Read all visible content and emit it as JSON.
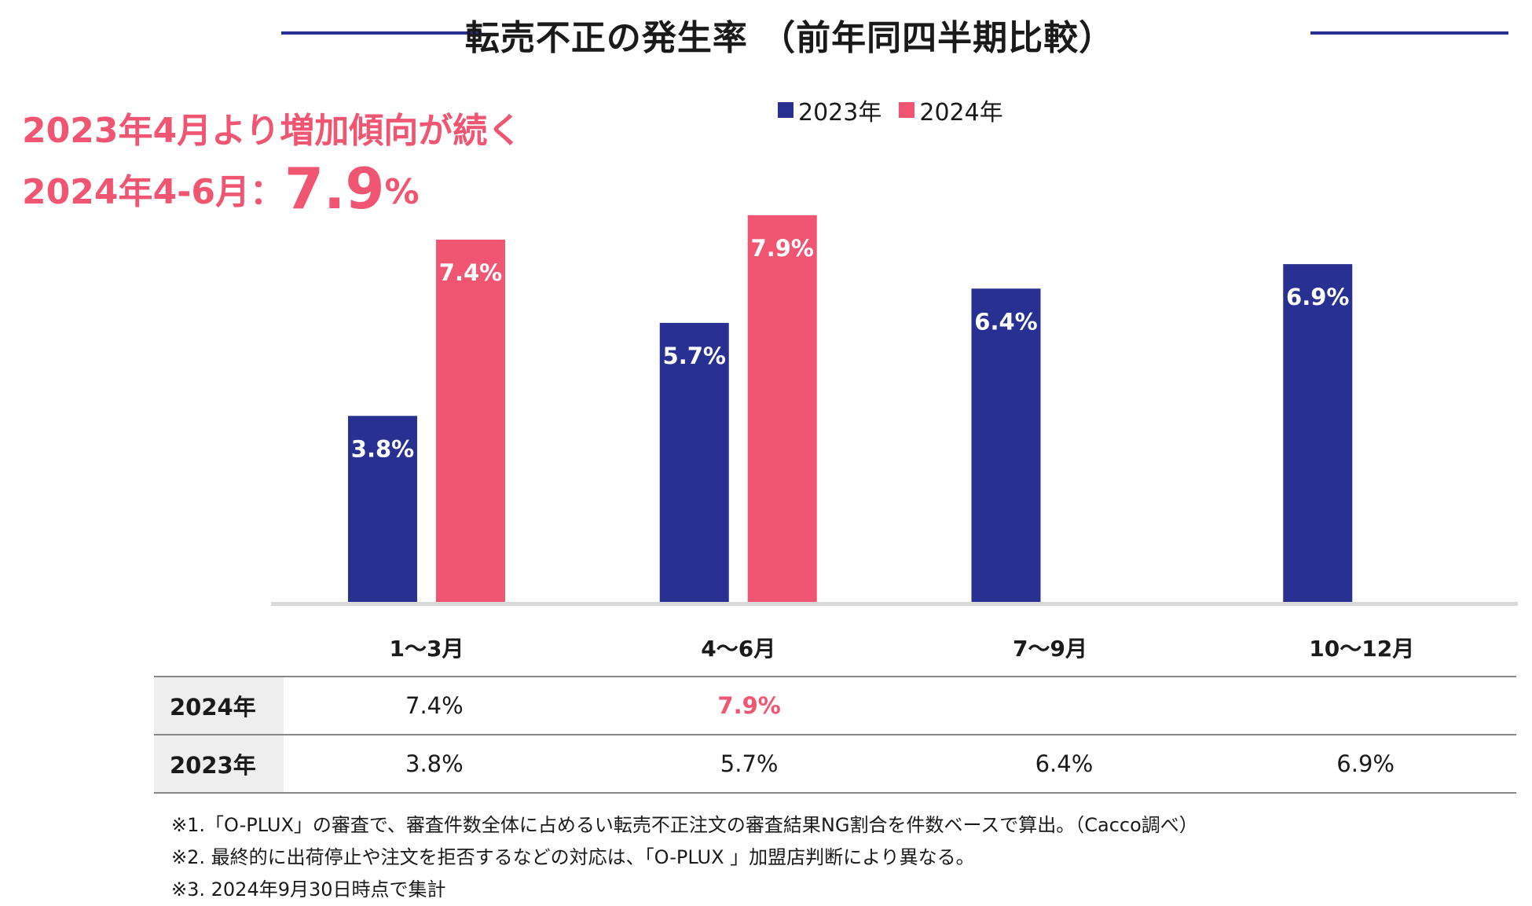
{
  "colors": {
    "navy": "#283092",
    "pink": "#f05672",
    "axis": "#d9d9d9",
    "title_rule": "#283092"
  },
  "title": "転売不正の発生率 （前年同四半期比較）",
  "highlight": {
    "line1": "2023年4月より増加傾向が続く",
    "line2_prefix": "2024年4-6月：",
    "line2_value": "7.9",
    "line2_unit": "%"
  },
  "chart_data": {
    "type": "bar",
    "title": "転売不正の発生率 （前年同四半期比較）",
    "categories": [
      "1〜3月",
      "4〜6月",
      "7〜9月",
      "10〜12月"
    ],
    "series": [
      {
        "name": "2023年",
        "values": [
          3.8,
          5.7,
          6.4,
          6.9
        ],
        "labels": [
          "3.8%",
          "5.7%",
          "6.4%",
          "6.9%"
        ]
      },
      {
        "name": "2024年",
        "values": [
          7.4,
          7.9,
          null,
          null
        ],
        "labels": [
          "7.4%",
          "7.9%",
          "",
          ""
        ]
      }
    ],
    "ylim": [
      0,
      8.0
    ],
    "xlabel": "",
    "ylabel": "",
    "grid": false,
    "legend": "top-center"
  },
  "table": {
    "rows": [
      {
        "label": "2024年",
        "cells": [
          "7.4%",
          "7.9%",
          "",
          ""
        ]
      },
      {
        "label": "2023年",
        "cells": [
          "3.8%",
          "5.7%",
          "6.4%",
          "6.9%"
        ]
      }
    ]
  },
  "notes": [
    "※1.「O-PLUX」の審査で、審査件数全体に占めるい転売不正注文の審査結果NG割合を件数ベースで算出。（Cacco調べ）",
    "※2. 最終的に出荷停止や注文を拒否するなどの対応は、「O-PLUX 」加盟店判断により異なる。",
    "※3. 2024年9月30日時点で集計"
  ]
}
